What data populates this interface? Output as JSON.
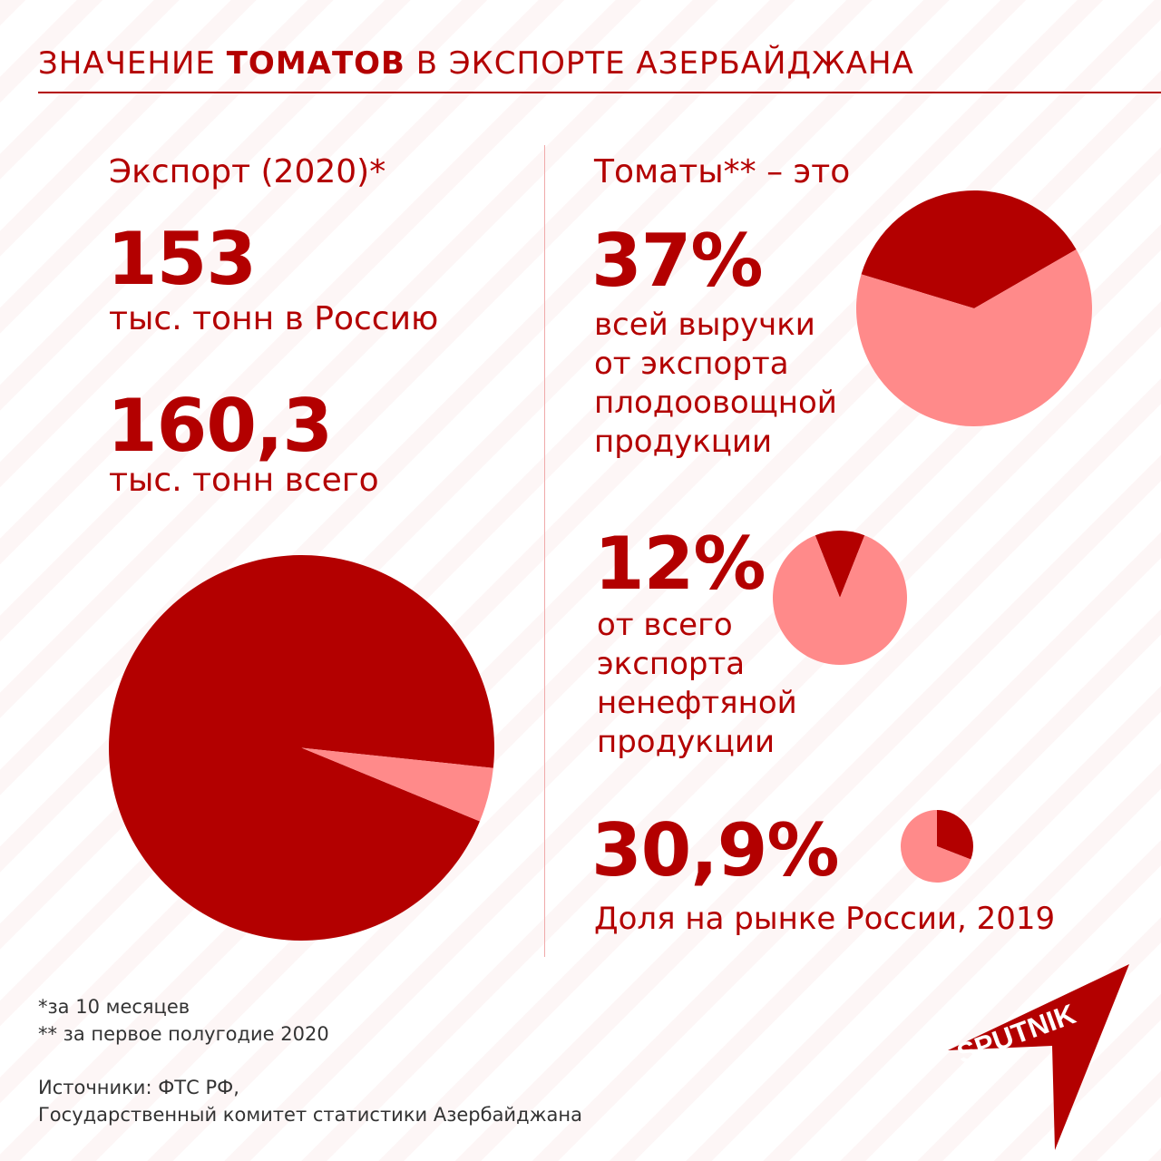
{
  "header": {
    "title_part1": "ЗНАЧЕНИЕ ",
    "title_bold": "ТОМАТОВ",
    "title_part2": " В ЭКСПОРТЕ АЗЕРБАЙДЖАНА"
  },
  "left": {
    "heading": "Экспорт (2020)*",
    "value1": "153",
    "label1": "тыс. тонн в Россию",
    "value2": "160,3",
    "label2": "тыс. тонн всего"
  },
  "right": {
    "heading": "Томаты** – это",
    "stat1": {
      "value": "37%",
      "lines": [
        "всей выручки",
        "от экспорта",
        "плодоовощной",
        "продукции"
      ]
    },
    "stat2": {
      "value": "12%",
      "lines": [
        "от всего",
        "экспорта",
        "ненефтяной",
        "продукции"
      ]
    },
    "stat3": {
      "value": "30,9%",
      "lines": [
        "Доля на рынке России, 2019"
      ]
    }
  },
  "footnotes": {
    "note1": "*за 10 месяцев",
    "note2": "** за первое полугодие 2020",
    "sources1": "Источники: ФТС РФ,",
    "sources2": "Государственный комитет статистики Азербайджана"
  },
  "logo_text": "SPUTNIK",
  "colors": {
    "dark": "#b30000",
    "light": "#ff8a8a",
    "accent": "#b30000"
  },
  "chart_data": [
    {
      "type": "pie",
      "title": "Экспорт (2020)*",
      "slices": [
        {
          "name": "тыс. тонн в Россию",
          "value": 153,
          "color": "#b30000"
        },
        {
          "name": "",
          "value": 7.3,
          "color": "#ff8a8a"
        }
      ]
    },
    {
      "type": "pie",
      "slices": [
        {
          "name": "всей выручки от экспорта плодоовощной продукции",
          "value": 37,
          "color": "#b30000"
        },
        {
          "name": "",
          "value": 63,
          "color": "#ff8a8a"
        }
      ]
    },
    {
      "type": "pie",
      "slices": [
        {
          "name": "от всего экспорта ненефтяной продукции",
          "value": 12,
          "color": "#b30000"
        },
        {
          "name": "",
          "value": 88,
          "color": "#ff8a8a"
        }
      ]
    },
    {
      "type": "pie",
      "slices": [
        {
          "name": "Доля на рынке России, 2019",
          "value": 30.9,
          "color": "#b30000"
        },
        {
          "name": "",
          "value": 69.1,
          "color": "#ff8a8a"
        }
      ]
    }
  ]
}
